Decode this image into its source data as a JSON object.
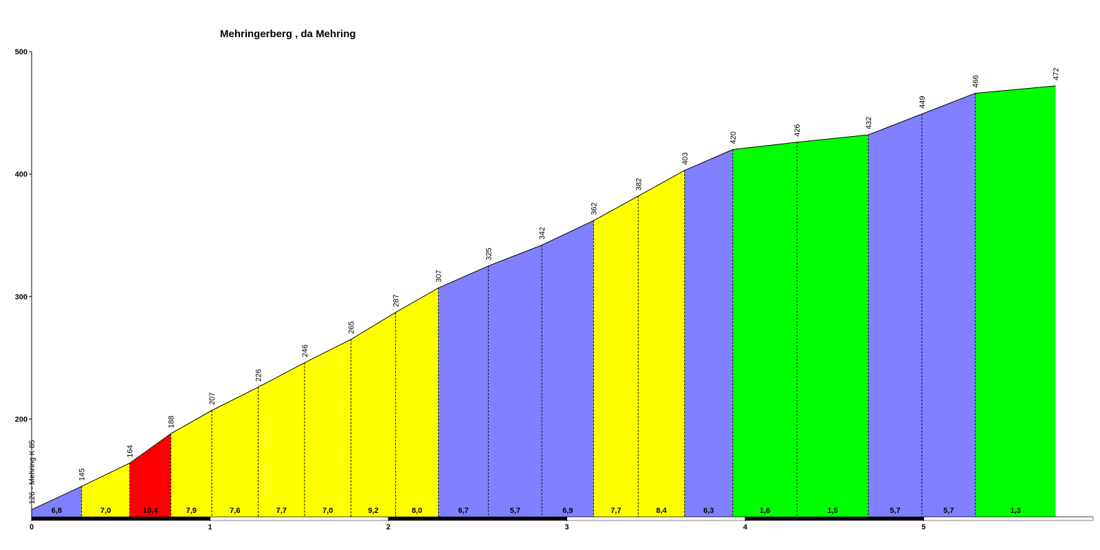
{
  "chart_data": {
    "type": "profile",
    "title": "Mehringerberg , da Mehring",
    "x": [
      0,
      0.28,
      0.55,
      0.78,
      1.01,
      1.27,
      1.53,
      1.79,
      2.04,
      2.28,
      2.56,
      2.86,
      3.15,
      3.4,
      3.66,
      3.93,
      4.29,
      4.69,
      4.99,
      5.29,
      5.74
    ],
    "values": [
      126,
      145,
      164,
      188,
      207,
      226,
      246,
      265,
      287,
      307,
      325,
      342,
      362,
      382,
      403,
      420,
      426,
      432,
      449,
      466,
      472
    ],
    "value_labels": [
      "126 - Mehring K 85",
      "145",
      "164",
      "188",
      "207",
      "226",
      "246",
      "265",
      "287",
      "307",
      "325",
      "342",
      "362",
      "382",
      "403",
      "420",
      "426",
      "432",
      "449",
      "466",
      "472"
    ],
    "segment_labels": [
      "6,8",
      "7,0",
      "10,4",
      "7,9",
      "7,6",
      "7,7",
      "7,0",
      "9,2",
      "8,0",
      "6,7",
      "5,7",
      "6,9",
      "7,7",
      "8,4",
      "6,3",
      "1,6",
      "1,5",
      "5,7",
      "5,7",
      "1,3"
    ],
    "segment_colors": [
      "#8080ff",
      "#ffff00",
      "#ff0000",
      "#ffff00",
      "#ffff00",
      "#ffff00",
      "#ffff00",
      "#ffff00",
      "#ffff00",
      "#8080ff",
      "#8080ff",
      "#8080ff",
      "#ffff00",
      "#ffff00",
      "#8080ff",
      "#00ff00",
      "#00ff00",
      "#8080ff",
      "#8080ff",
      "#00ff00"
    ],
    "xlim": [
      0,
      5.95
    ],
    "ylim": [
      120,
      500
    ],
    "xticks": [
      0,
      1,
      2,
      3,
      4,
      5
    ],
    "yticks": [
      200,
      300,
      400,
      500
    ]
  }
}
